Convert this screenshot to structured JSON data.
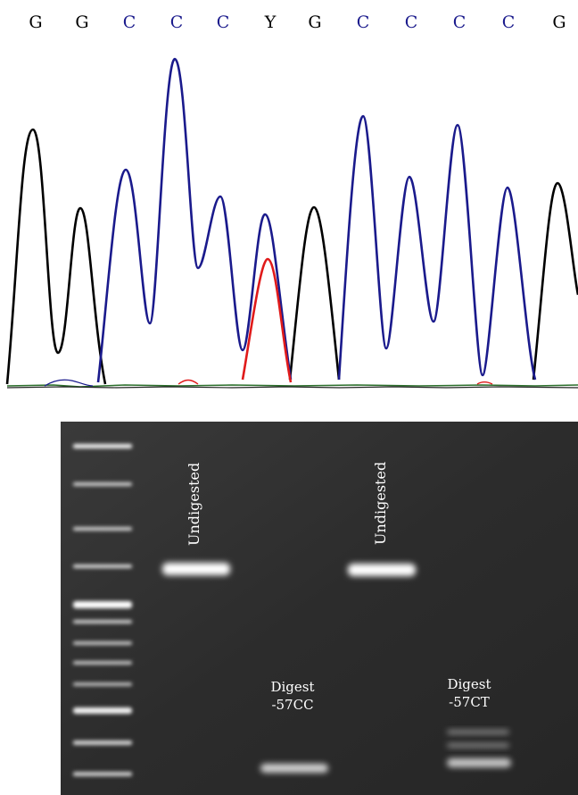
{
  "sequence": {
    "bases": [
      "G",
      "G",
      "C",
      "C",
      "C",
      "Y",
      "G",
      "C",
      "C",
      "C",
      "C",
      "G"
    ],
    "colors": {
      "G": "#000000",
      "C": "#1a1a8c",
      "Y": "#000000",
      "T": "#e01a1a",
      "A": "#1a8c1a"
    }
  },
  "gel": {
    "labels": {
      "undigested_1": "Undigested",
      "undigested_2": "Undigested",
      "digest_cc_line1": "Digest",
      "digest_cc_line2": "-57CC",
      "digest_ct_line1": "Digest",
      "digest_ct_line2": "-57CT"
    }
  }
}
